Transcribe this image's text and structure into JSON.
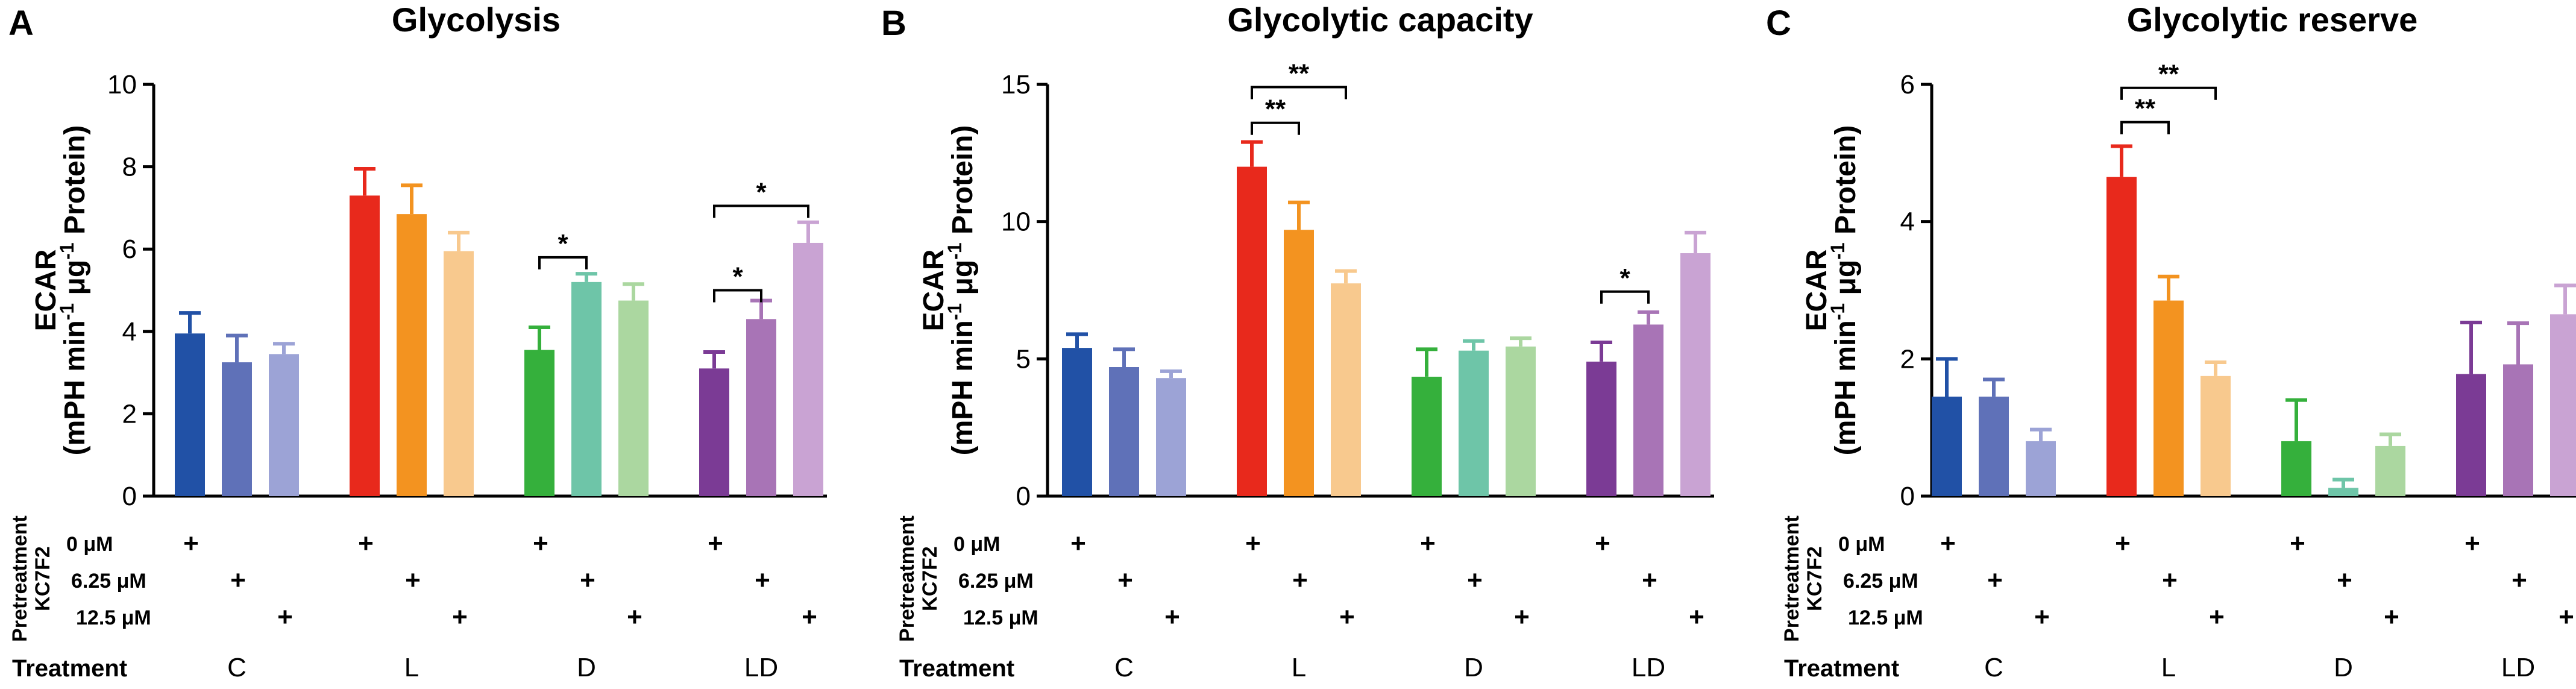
{
  "chart_data": [
    {
      "letter": "A",
      "type": "bar",
      "title": "Glycolysis",
      "ylabel": "ECAR",
      "ylabel_units": "(mPH min-1 μg-1 Protein)",
      "ylim": [
        0,
        10
      ],
      "yticks": [
        "0",
        "2",
        "4",
        "6",
        "8",
        "10"
      ],
      "groups": [
        "C",
        "L",
        "D",
        "LD"
      ],
      "values": [
        [
          3.95,
          3.25,
          3.45
        ],
        [
          7.3,
          6.85,
          5.95
        ],
        [
          3.55,
          5.2,
          4.75
        ],
        [
          3.1,
          4.3,
          6.15
        ]
      ],
      "errors": [
        [
          0.5,
          0.65,
          0.25
        ],
        [
          0.65,
          0.7,
          0.45
        ],
        [
          0.55,
          0.2,
          0.4
        ],
        [
          0.4,
          0.45,
          0.5
        ]
      ],
      "significance": [
        {
          "group": 2,
          "from": 0,
          "to": 1,
          "label": "*",
          "y": 5.8
        },
        {
          "group": 3,
          "from": 0,
          "to": 1,
          "label": "*",
          "y": 5.0
        },
        {
          "group": 3,
          "from": 0,
          "to": 2,
          "label": "*",
          "y": 7.05
        }
      ]
    },
    {
      "letter": "B",
      "type": "bar",
      "title": "Glycolytic capacity",
      "ylabel": "ECAR",
      "ylabel_units": "(mPH min-1 μg-1 Protein)",
      "ylim": [
        0,
        15
      ],
      "yticks": [
        "0",
        "5",
        "10",
        "15"
      ],
      "groups": [
        "C",
        "L",
        "D",
        "LD"
      ],
      "values": [
        [
          5.4,
          4.7,
          4.3
        ],
        [
          12.0,
          9.7,
          7.75
        ],
        [
          4.35,
          5.3,
          5.45
        ],
        [
          4.9,
          6.25,
          8.85
        ]
      ],
      "errors": [
        [
          0.5,
          0.65,
          0.25
        ],
        [
          0.9,
          1.0,
          0.45
        ],
        [
          1.0,
          0.35,
          0.3
        ],
        [
          0.7,
          0.45,
          0.75
        ]
      ],
      "significance": [
        {
          "group": 1,
          "from": 0,
          "to": 1,
          "label": "**",
          "y": 13.6
        },
        {
          "group": 1,
          "from": 0,
          "to": 2,
          "label": "**",
          "y": 14.9
        },
        {
          "group": 3,
          "from": 0,
          "to": 1,
          "label": "*",
          "y": 7.45
        }
      ]
    },
    {
      "letter": "C",
      "type": "bar",
      "title": "Glycolytic reserve",
      "ylabel": "ECAR",
      "ylabel_units": "(mPH min-1 μg-1 Protein)",
      "ylim": [
        0,
        6
      ],
      "yticks": [
        "0",
        "2",
        "4",
        "6"
      ],
      "groups": [
        "C",
        "L",
        "D",
        "LD"
      ],
      "values": [
        [
          1.45,
          1.45,
          0.8
        ],
        [
          4.65,
          2.85,
          1.75
        ],
        [
          0.8,
          0.12,
          0.73
        ],
        [
          1.78,
          1.92,
          2.65
        ]
      ],
      "errors": [
        [
          0.55,
          0.25,
          0.17
        ],
        [
          0.45,
          0.35,
          0.2
        ],
        [
          0.6,
          0.12,
          0.17
        ],
        [
          0.75,
          0.6,
          0.42
        ]
      ],
      "significance": [
        {
          "group": 1,
          "from": 0,
          "to": 1,
          "label": "**",
          "y": 5.45
        },
        {
          "group": 1,
          "from": 0,
          "to": 2,
          "label": "**",
          "y": 5.95
        }
      ]
    }
  ],
  "pretreatment": {
    "label_line1": "Pretreatment",
    "label_line2": "KC7F2",
    "doses": [
      "0 μM",
      "6.25 μM",
      "12.5 μM"
    ],
    "marker": "+"
  },
  "treatment_label": "Treatment",
  "colors": {
    "C": [
      "#2151a6",
      "#5f71b8",
      "#9ca3d6"
    ],
    "L": [
      "#e8291c",
      "#f39320",
      "#f8c98e"
    ],
    "D": [
      "#35b03c",
      "#6ec5a8",
      "#abd7a0"
    ],
    "LD": [
      "#7b3b95",
      "#a874b6",
      "#c9a3d3"
    ]
  }
}
